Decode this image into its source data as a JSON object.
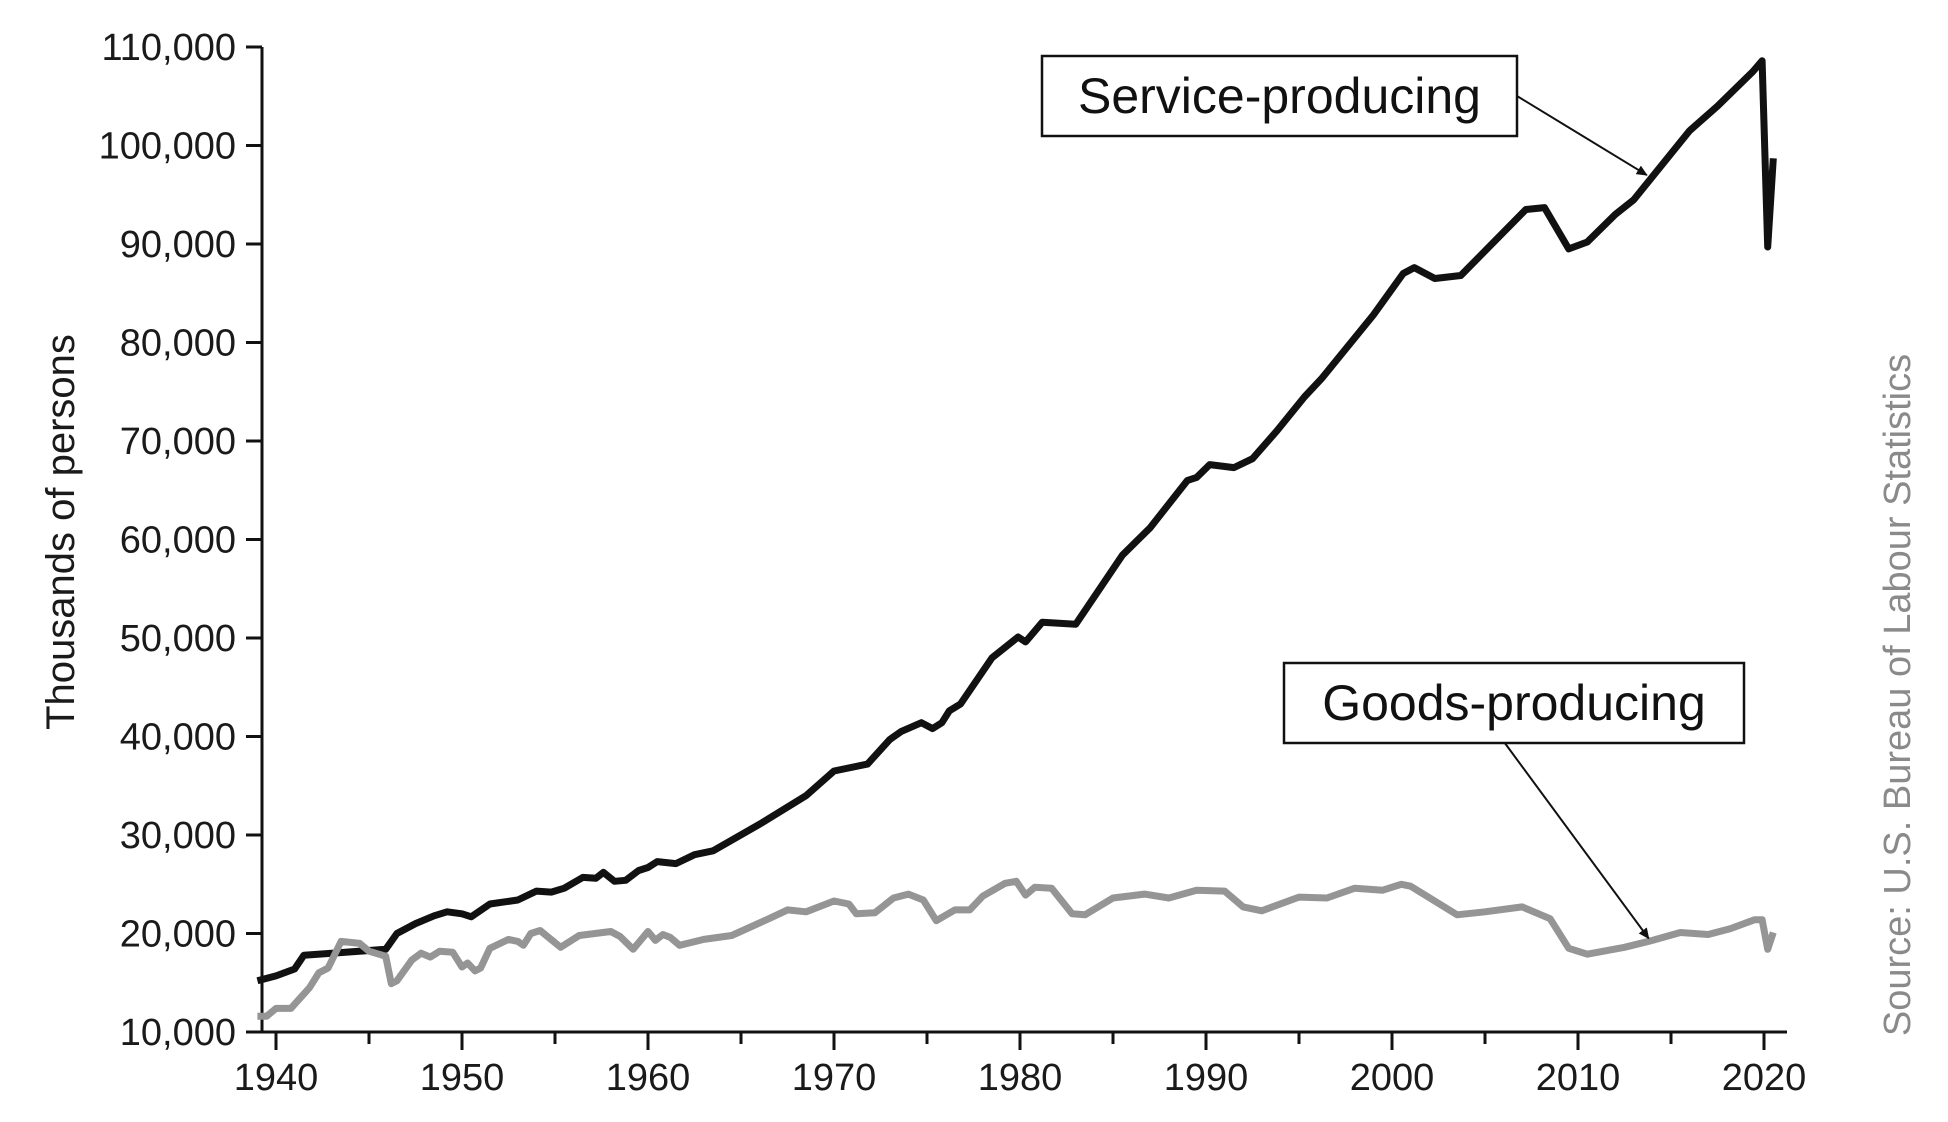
{
  "chart_data": {
    "type": "line",
    "ylabel": "Thousands of persons",
    "source": "Source: U.S. Bureau of Labour Statistics",
    "xlim": [
      1939,
      2020.6
    ],
    "ylim": [
      10000,
      110000
    ],
    "x_ticks": [
      1940,
      1950,
      1960,
      1970,
      1980,
      1990,
      2000,
      2010,
      2020
    ],
    "y_ticks": [
      10000,
      20000,
      30000,
      40000,
      50000,
      60000,
      70000,
      80000,
      90000,
      100000,
      110000
    ],
    "y_tick_labels": [
      "10,000",
      "20,000",
      "30,000",
      "40,000",
      "50,000",
      "60,000",
      "70,000",
      "80,000",
      "90,000",
      "100,000",
      "110,000"
    ],
    "x_tick_labels": [
      "1940",
      "1950",
      "1960",
      "1970",
      "1980",
      "1990",
      "2000",
      "2010",
      "2020"
    ],
    "grid": false,
    "series": [
      {
        "name": "Service-producing",
        "color": "#111111",
        "points": [
          [
            1939,
            15200
          ],
          [
            1940,
            15700
          ],
          [
            1941,
            16400
          ],
          [
            1941.5,
            17800
          ],
          [
            1943,
            18000
          ],
          [
            1945.9,
            18400
          ],
          [
            1946.5,
            20000
          ],
          [
            1947.5,
            21000
          ],
          [
            1948.5,
            21800
          ],
          [
            1949.2,
            22200
          ],
          [
            1950,
            22000
          ],
          [
            1950.5,
            21700
          ],
          [
            1951.5,
            23000
          ],
          [
            1953,
            23400
          ],
          [
            1954,
            24300
          ],
          [
            1954.8,
            24200
          ],
          [
            1955.5,
            24600
          ],
          [
            1956.5,
            25700
          ],
          [
            1957.2,
            25600
          ],
          [
            1957.6,
            26200
          ],
          [
            1958.2,
            25300
          ],
          [
            1958.8,
            25400
          ],
          [
            1959.5,
            26400
          ],
          [
            1960,
            26700
          ],
          [
            1960.5,
            27300
          ],
          [
            1961.5,
            27100
          ],
          [
            1962.5,
            28000
          ],
          [
            1963.5,
            28400
          ],
          [
            1966,
            31100
          ],
          [
            1968.5,
            34000
          ],
          [
            1970,
            36500
          ],
          [
            1971.8,
            37200
          ],
          [
            1973,
            39700
          ],
          [
            1973.6,
            40500
          ],
          [
            1974.7,
            41400
          ],
          [
            1975.3,
            40800
          ],
          [
            1975.8,
            41400
          ],
          [
            1976.2,
            42600
          ],
          [
            1976.8,
            43300
          ],
          [
            1978.5,
            48000
          ],
          [
            1979.9,
            50100
          ],
          [
            1980.3,
            49600
          ],
          [
            1981.2,
            51600
          ],
          [
            1983,
            51400
          ],
          [
            1985.5,
            58400
          ],
          [
            1987,
            61200
          ],
          [
            1989,
            66000
          ],
          [
            1989.5,
            66300
          ],
          [
            1990.2,
            67600
          ],
          [
            1991.5,
            67300
          ],
          [
            1992.5,
            68200
          ],
          [
            1993.8,
            71000
          ],
          [
            1995.3,
            74500
          ],
          [
            1996.2,
            76300
          ],
          [
            1999,
            82800
          ],
          [
            2000.6,
            87000
          ],
          [
            2001.2,
            87600
          ],
          [
            2002.3,
            86500
          ],
          [
            2003.7,
            86800
          ],
          [
            2007.2,
            93500
          ],
          [
            2008.2,
            93700
          ],
          [
            2009.5,
            89500
          ],
          [
            2010.5,
            90200
          ],
          [
            2012,
            93000
          ],
          [
            2013,
            94500
          ],
          [
            2016,
            101500
          ],
          [
            2017.5,
            104000
          ],
          [
            2019.4,
            107500
          ],
          [
            2019.9,
            108600
          ],
          [
            2020.2,
            89700
          ],
          [
            2020.5,
            98700
          ]
        ]
      },
      {
        "name": "Goods-producing",
        "color": "#959595",
        "points": [
          [
            1939,
            11600
          ],
          [
            1939.5,
            11600
          ],
          [
            1940,
            12400
          ],
          [
            1940.8,
            12400
          ],
          [
            1941.8,
            14500
          ],
          [
            1942.3,
            16000
          ],
          [
            1942.8,
            16500
          ],
          [
            1943.5,
            19200
          ],
          [
            1944.5,
            19000
          ],
          [
            1945,
            18200
          ],
          [
            1945.9,
            17700
          ],
          [
            1946.2,
            14900
          ],
          [
            1946.5,
            15200
          ],
          [
            1947.3,
            17300
          ],
          [
            1947.8,
            18000
          ],
          [
            1948.3,
            17600
          ],
          [
            1948.8,
            18200
          ],
          [
            1949.5,
            18100
          ],
          [
            1950,
            16600
          ],
          [
            1950.3,
            17000
          ],
          [
            1950.7,
            16200
          ],
          [
            1951,
            16500
          ],
          [
            1951.5,
            18500
          ],
          [
            1952.5,
            19400
          ],
          [
            1953,
            19200
          ],
          [
            1953.3,
            18800
          ],
          [
            1953.7,
            20000
          ],
          [
            1954.2,
            20300
          ],
          [
            1955.3,
            18600
          ],
          [
            1956.3,
            19800
          ],
          [
            1958,
            20200
          ],
          [
            1958.5,
            19700
          ],
          [
            1959.2,
            18400
          ],
          [
            1960,
            20200
          ],
          [
            1960.4,
            19300
          ],
          [
            1960.8,
            19900
          ],
          [
            1961.2,
            19600
          ],
          [
            1961.7,
            18800
          ],
          [
            1963,
            19400
          ],
          [
            1964.5,
            19800
          ],
          [
            1966.5,
            21500
          ],
          [
            1967.5,
            22400
          ],
          [
            1968.5,
            22200
          ],
          [
            1970,
            23300
          ],
          [
            1970.8,
            23000
          ],
          [
            1971.2,
            22000
          ],
          [
            1972.2,
            22100
          ],
          [
            1973.2,
            23600
          ],
          [
            1974,
            24000
          ],
          [
            1974.8,
            23400
          ],
          [
            1975.5,
            21300
          ],
          [
            1976.5,
            22400
          ],
          [
            1977.3,
            22400
          ],
          [
            1978,
            23800
          ],
          [
            1979.2,
            25100
          ],
          [
            1979.8,
            25300
          ],
          [
            1980.3,
            23900
          ],
          [
            1980.8,
            24700
          ],
          [
            1981.7,
            24600
          ],
          [
            1982.8,
            22000
          ],
          [
            1983.5,
            21900
          ],
          [
            1985,
            23600
          ],
          [
            1986.7,
            24000
          ],
          [
            1988,
            23600
          ],
          [
            1989.5,
            24400
          ],
          [
            1991,
            24300
          ],
          [
            1992,
            22700
          ],
          [
            1993,
            22300
          ],
          [
            1995,
            23700
          ],
          [
            1996.5,
            23600
          ],
          [
            1998,
            24600
          ],
          [
            1999.5,
            24400
          ],
          [
            2000.5,
            25000
          ],
          [
            2001,
            24800
          ],
          [
            2003.5,
            21900
          ],
          [
            2005,
            22200
          ],
          [
            2007,
            22700
          ],
          [
            2008.5,
            21500
          ],
          [
            2009.5,
            18500
          ],
          [
            2010.5,
            17900
          ],
          [
            2012.5,
            18600
          ],
          [
            2014,
            19300
          ],
          [
            2015.5,
            20100
          ],
          [
            2017,
            19900
          ],
          [
            2018.2,
            20500
          ],
          [
            2019.5,
            21400
          ],
          [
            2019.9,
            21400
          ],
          [
            2020.2,
            18400
          ],
          [
            2020.5,
            20100
          ]
        ]
      }
    ],
    "annotations": [
      {
        "text": "Service-producing",
        "series": "Service-producing",
        "points_to": [
          2013.7,
          97000
        ]
      },
      {
        "text": "Goods-producing",
        "series": "Goods-producing",
        "points_to": [
          2013.8,
          19500
        ]
      }
    ]
  }
}
